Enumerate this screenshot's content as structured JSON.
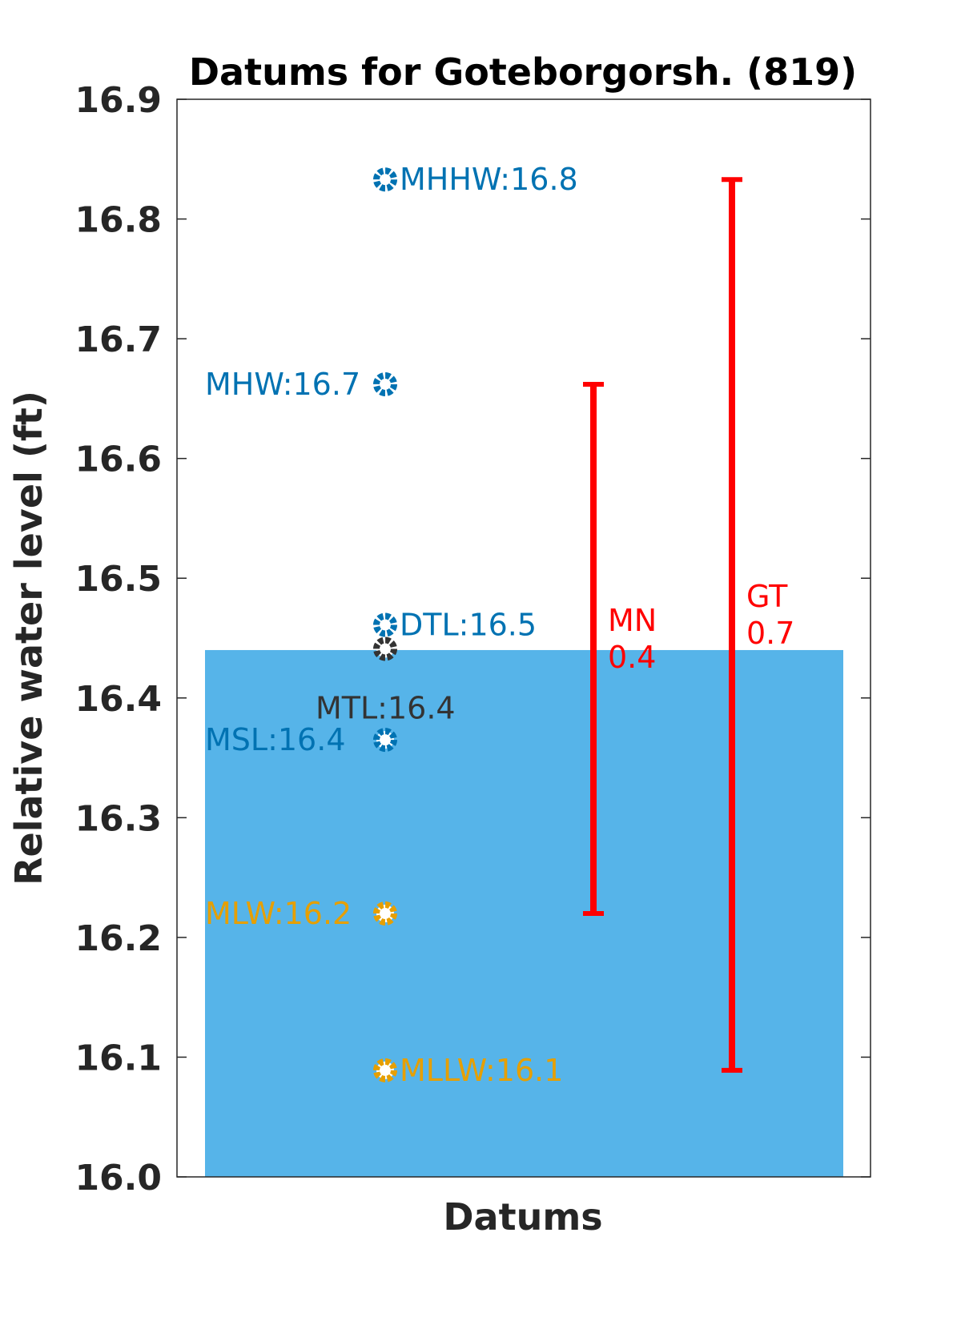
{
  "chart_data": {
    "type": "bar",
    "title": "Datums for Goteborgorsh. (819)",
    "xlabel": "Datums",
    "ylabel": "Relative water level (ft)",
    "ylim": [
      16.0,
      16.9
    ],
    "yticks": [
      "16.0",
      "16.1",
      "16.2",
      "16.3",
      "16.4",
      "16.5",
      "16.6",
      "16.7",
      "16.8",
      "16.9"
    ],
    "grid": false,
    "bar": {
      "value": 16.44,
      "color": "#56B4E9"
    },
    "datums": [
      {
        "label": "MHHW:16.8",
        "value": 16.833,
        "color": "#0072B2",
        "label_side": "right"
      },
      {
        "label": "MHW:16.7",
        "value": 16.662,
        "color": "#0072B2",
        "label_side": "left"
      },
      {
        "label": "DTL:16.5",
        "value": 16.461,
        "color": "#0072B2",
        "label_side": "right"
      },
      {
        "label": "MTL:16.4",
        "value": 16.441,
        "color": "#333333",
        "label_side": "below"
      },
      {
        "label": "MSL:16.4",
        "value": 16.365,
        "color": "#0072B2",
        "label_side": "left"
      },
      {
        "label": "MLW:16.2",
        "value": 16.22,
        "color": "#E69F00",
        "label_side": "left"
      },
      {
        "label": "MLLW:16.1",
        "value": 16.089,
        "color": "#E69F00",
        "label_side": "right"
      }
    ],
    "ranges": [
      {
        "name": "MN",
        "value_label": "0.4",
        "low": 16.22,
        "high": 16.662,
        "color": "#FF0000"
      },
      {
        "name": "GT",
        "value_label": "0.7",
        "low": 16.089,
        "high": 16.833,
        "color": "#FF0000"
      }
    ]
  }
}
